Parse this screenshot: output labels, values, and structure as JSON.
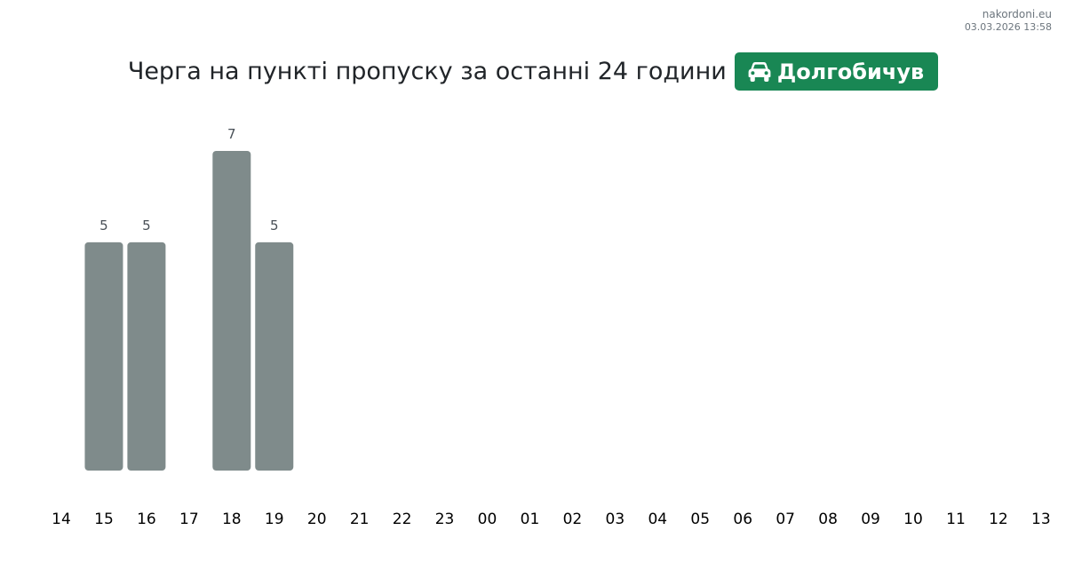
{
  "watermark": {
    "site": "nakordoni.eu",
    "timestamp": "03.03.2026 13:58"
  },
  "header": {
    "title": "Черга на пункті пропуску за останні 24 години",
    "checkpoint": "Долгобичув",
    "checkpoint_icon": "car-icon"
  },
  "colors": {
    "bar": "#7f8b8b",
    "badge": "#198754",
    "text": "#212529",
    "label": "#495057"
  },
  "chart_data": {
    "type": "bar",
    "categories": [
      "14",
      "15",
      "16",
      "17",
      "18",
      "19",
      "20",
      "21",
      "22",
      "23",
      "00",
      "01",
      "02",
      "03",
      "04",
      "05",
      "06",
      "07",
      "08",
      "09",
      "10",
      "11",
      "12",
      "13"
    ],
    "values": [
      null,
      5,
      5,
      null,
      7,
      5,
      null,
      null,
      null,
      null,
      null,
      null,
      null,
      null,
      null,
      null,
      null,
      null,
      null,
      null,
      null,
      null,
      null,
      null
    ],
    "title": "",
    "xlabel": "",
    "ylabel": "",
    "ylim": [
      0,
      7
    ],
    "grid": false,
    "legend": "none",
    "data_labels": true
  }
}
